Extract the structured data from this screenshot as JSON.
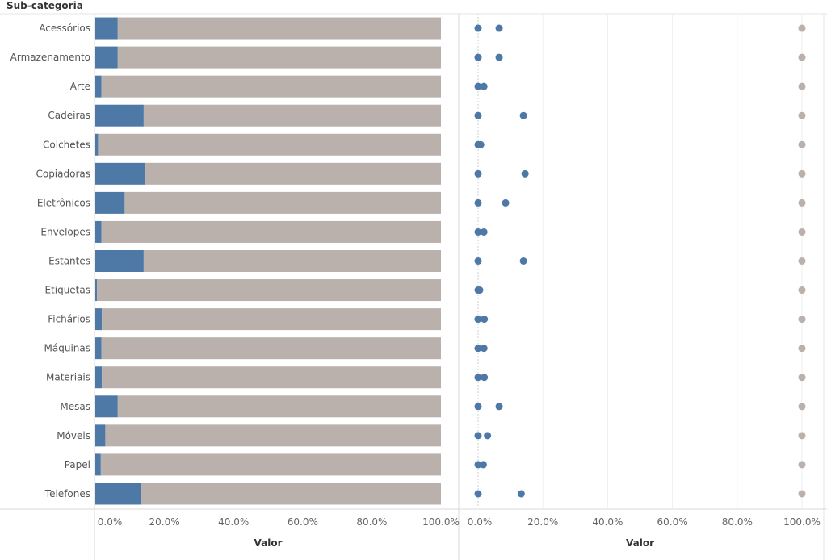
{
  "header": {
    "row_field": "Sub-categoria"
  },
  "chart_data": [
    {
      "type": "bar",
      "stacked": true,
      "normalized": true,
      "categories": [
        "Acessórios",
        "Armazenamento",
        "Arte",
        "Cadeiras",
        "Colchetes",
        "Copiadoras",
        "Eletrônicos",
        "Envelopes",
        "Estantes",
        "Etiquetas",
        "Fichários",
        "Máquinas",
        "Materiais",
        "Mesas",
        "Móveis",
        "Papel",
        "Telefones"
      ],
      "series": [
        {
          "values": [
            6.5,
            6.5,
            1.8,
            14.0,
            0.8,
            14.5,
            8.5,
            1.8,
            14.0,
            0.5,
            1.9,
            1.8,
            1.9,
            6.5,
            2.9,
            1.6,
            13.3
          ]
        },
        {
          "values": [
            93.5,
            93.5,
            98.2,
            86.0,
            99.2,
            85.5,
            91.5,
            98.2,
            86.0,
            99.5,
            98.1,
            98.2,
            98.1,
            93.5,
            97.1,
            98.4,
            86.7
          ]
        }
      ],
      "xlabel": "Valor",
      "xlim": [
        0,
        100
      ],
      "xticks": [
        "0.0%",
        "20.0%",
        "40.0%",
        "60.0%",
        "80.0%",
        "100.0%"
      ],
      "colors": [
        "#4e79a7",
        "#bab0ac"
      ]
    },
    {
      "type": "scatter",
      "categories": [
        "Acessórios",
        "Armazenamento",
        "Arte",
        "Cadeiras",
        "Colchetes",
        "Copiadoras",
        "Eletrônicos",
        "Envelopes",
        "Estantes",
        "Etiquetas",
        "Fichários",
        "Máquinas",
        "Materiais",
        "Mesas",
        "Móveis",
        "Papel",
        "Telefones"
      ],
      "series": [
        {
          "values": [
            0,
            0,
            0,
            0,
            0,
            0,
            0,
            0,
            0,
            0,
            0,
            0,
            0,
            0,
            0,
            0,
            0
          ]
        },
        {
          "values": [
            6.5,
            6.5,
            1.8,
            14.0,
            0.8,
            14.5,
            8.5,
            1.8,
            14.0,
            0.5,
            1.9,
            1.8,
            1.9,
            6.5,
            2.9,
            1.6,
            13.3
          ]
        },
        {
          "values": [
            100,
            100,
            100,
            100,
            100,
            100,
            100,
            100,
            100,
            100,
            100,
            100,
            100,
            100,
            100,
            100,
            100
          ]
        }
      ],
      "xlabel": "Valor",
      "xlim": [
        0,
        100
      ],
      "xticks": [
        "0.0%",
        "20.0%",
        "40.0%",
        "60.0%",
        "80.0%",
        "100.0%"
      ],
      "colors": [
        "#4e79a7",
        "#4e79a7",
        "#bab0ac"
      ]
    }
  ]
}
